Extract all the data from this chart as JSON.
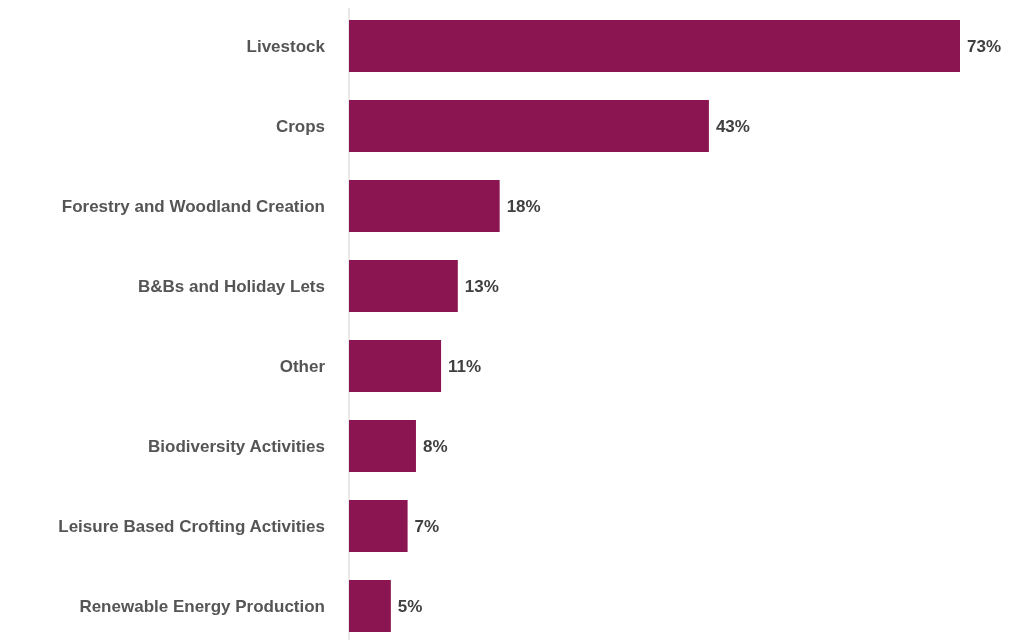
{
  "chart_data": {
    "type": "bar",
    "orientation": "horizontal",
    "categories": [
      "Livestock",
      "Crops",
      "Forestry and Woodland Creation",
      "B&Bs and Holiday Lets",
      "Other",
      "Biodiversity Activities",
      "Leisure Based Crofting Activities",
      "Renewable Energy Production"
    ],
    "values": [
      73,
      43,
      18,
      13,
      11,
      8,
      7,
      5
    ],
    "value_labels": [
      "73%",
      "43%",
      "18%",
      "13%",
      "11%",
      "8%",
      "7%",
      "5%"
    ],
    "color": "#8b1550"
  }
}
